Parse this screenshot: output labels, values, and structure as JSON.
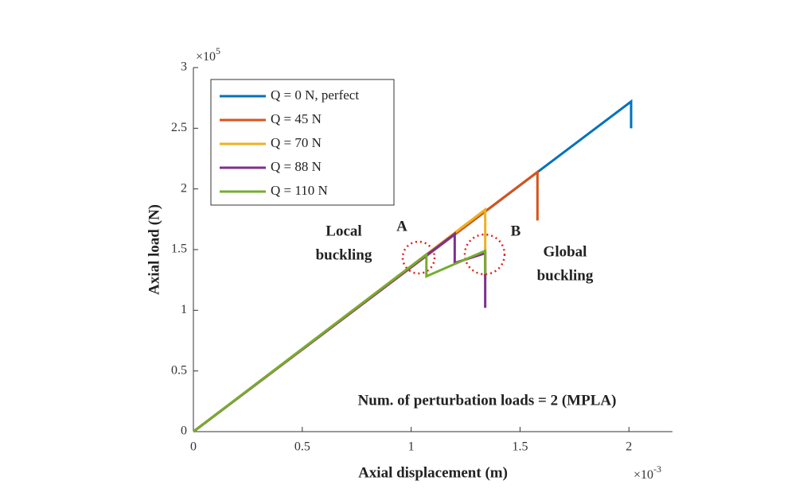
{
  "chart_data": {
    "type": "line",
    "x_label": "Axial displacement (m)",
    "y_label": "Axial load (N)",
    "x_multiplier": {
      "base": "×10",
      "exp": "-3"
    },
    "y_multiplier": {
      "base": "×10",
      "exp": "5"
    },
    "xlim": [
      0,
      2.2
    ],
    "ylim": [
      0,
      3
    ],
    "xticks": [
      0,
      0.5,
      1,
      1.5,
      2
    ],
    "yticks": [
      0,
      0.5,
      1,
      1.5,
      2,
      2.5,
      3
    ],
    "legend": "upper left",
    "series": [
      {
        "name": "Q = 0 N, perfect",
        "color": "#0072bd",
        "x": [
          0,
          2.01,
          2.01
        ],
        "values": [
          0,
          2.72,
          2.5
        ]
      },
      {
        "name": "Q = 45 N",
        "color": "#d95319",
        "x": [
          0,
          1.58,
          1.58
        ],
        "values": [
          0,
          2.14,
          1.74
        ]
      },
      {
        "name": "Q = 70 N",
        "color": "#edb120",
        "x": [
          0,
          1.34,
          1.34
        ],
        "values": [
          0,
          1.83,
          1.25
        ]
      },
      {
        "name": "Q = 88 N",
        "color": "#7e2f8e",
        "x": [
          0,
          1.2,
          1.2,
          1.34,
          1.34
        ],
        "values": [
          0,
          1.63,
          1.39,
          1.47,
          1.02
        ]
      },
      {
        "name": "Q = 110 N",
        "color": "#77ac30",
        "x": [
          0,
          1.07,
          1.07,
          1.34,
          1.34
        ],
        "values": [
          0,
          1.46,
          1.28,
          1.49,
          1.3
        ]
      }
    ],
    "annotations": {
      "local": [
        "Local",
        "buckling"
      ],
      "a": "A",
      "b": "B",
      "global": [
        "Global",
        "buckling"
      ],
      "note": "Num. of perturbation loads = 2 (MPLA)"
    }
  }
}
